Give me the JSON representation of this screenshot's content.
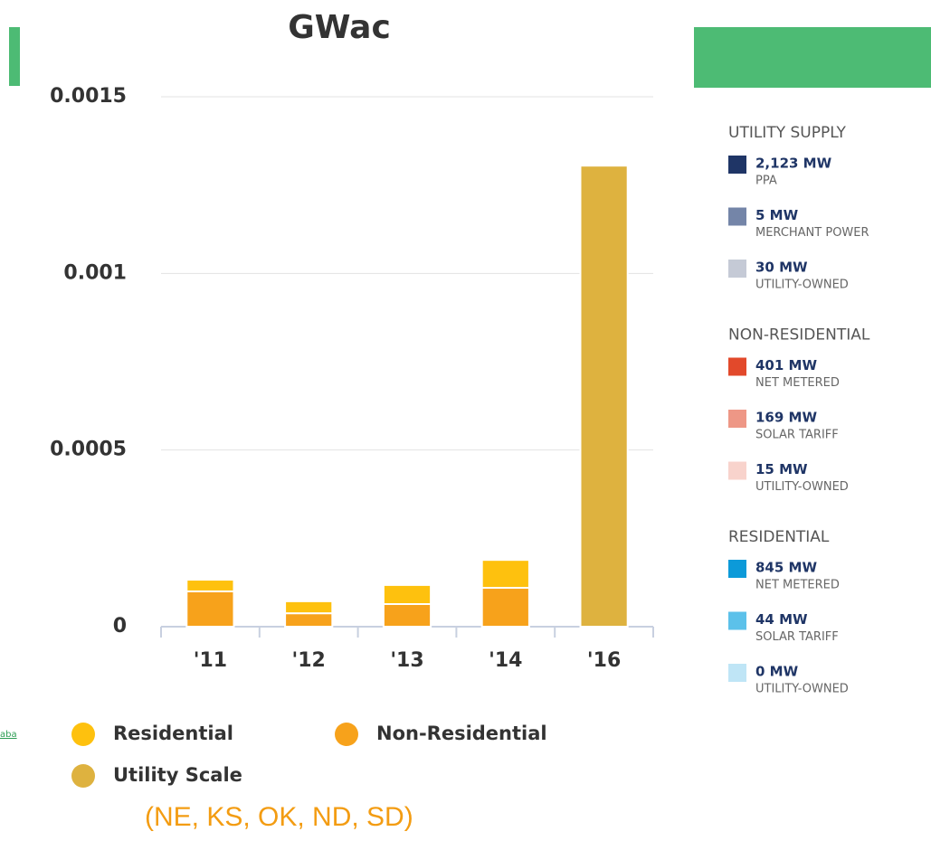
{
  "chart_data": {
    "type": "bar",
    "stacked": true,
    "title": "GWac",
    "categories": [
      "'11",
      "'12",
      "'13",
      "'14",
      "'16"
    ],
    "series": [
      {
        "name": "Non-Residential",
        "color": "#f7a21b",
        "values": [
          0.0001,
          3.8e-05,
          6.4e-05,
          0.00011,
          0
        ]
      },
      {
        "name": "Residential",
        "color": "#fec10e",
        "values": [
          3.3e-05,
          3.4e-05,
          5.4e-05,
          7.9e-05,
          0
        ]
      },
      {
        "name": "Utility Scale",
        "color": "#deb23f",
        "values": [
          0,
          0,
          0,
          0,
          0.001305
        ]
      }
    ],
    "ylim": [
      0,
      0.0015
    ],
    "yticks": [
      0,
      0.0005,
      0.001,
      0.0015
    ],
    "grid": true,
    "annotation": "(NE, KS, OK, ND, SD)"
  },
  "left_link_fragment": "aba",
  "sidebar": {
    "groups": [
      {
        "title": "UTILITY SUPPLY",
        "items": [
          {
            "value": "2,123 MW",
            "label": "PPA",
            "color": "#1f3566"
          },
          {
            "value": "5 MW",
            "label": "MERCHANT POWER",
            "color": "#7485a8"
          },
          {
            "value": "30 MW",
            "label": "UTILITY-OWNED",
            "color": "#c5cad6"
          }
        ]
      },
      {
        "title": "NON-RESIDENTIAL",
        "items": [
          {
            "value": "401 MW",
            "label": "NET METERED",
            "color": "#e2492b"
          },
          {
            "value": "169 MW",
            "label": "SOLAR TARIFF",
            "color": "#ee9786"
          },
          {
            "value": "15 MW",
            "label": "UTILITY-OWNED",
            "color": "#f8d3cc"
          }
        ]
      },
      {
        "title": "RESIDENTIAL",
        "items": [
          {
            "value": "845 MW",
            "label": "NET METERED",
            "color": "#0c9ad9"
          },
          {
            "value": "44 MW",
            "label": "SOLAR TARIFF",
            "color": "#5cc1ea"
          },
          {
            "value": "0 MW",
            "label": "UTILITY-OWNED",
            "color": "#bfe5f6"
          }
        ]
      }
    ]
  }
}
